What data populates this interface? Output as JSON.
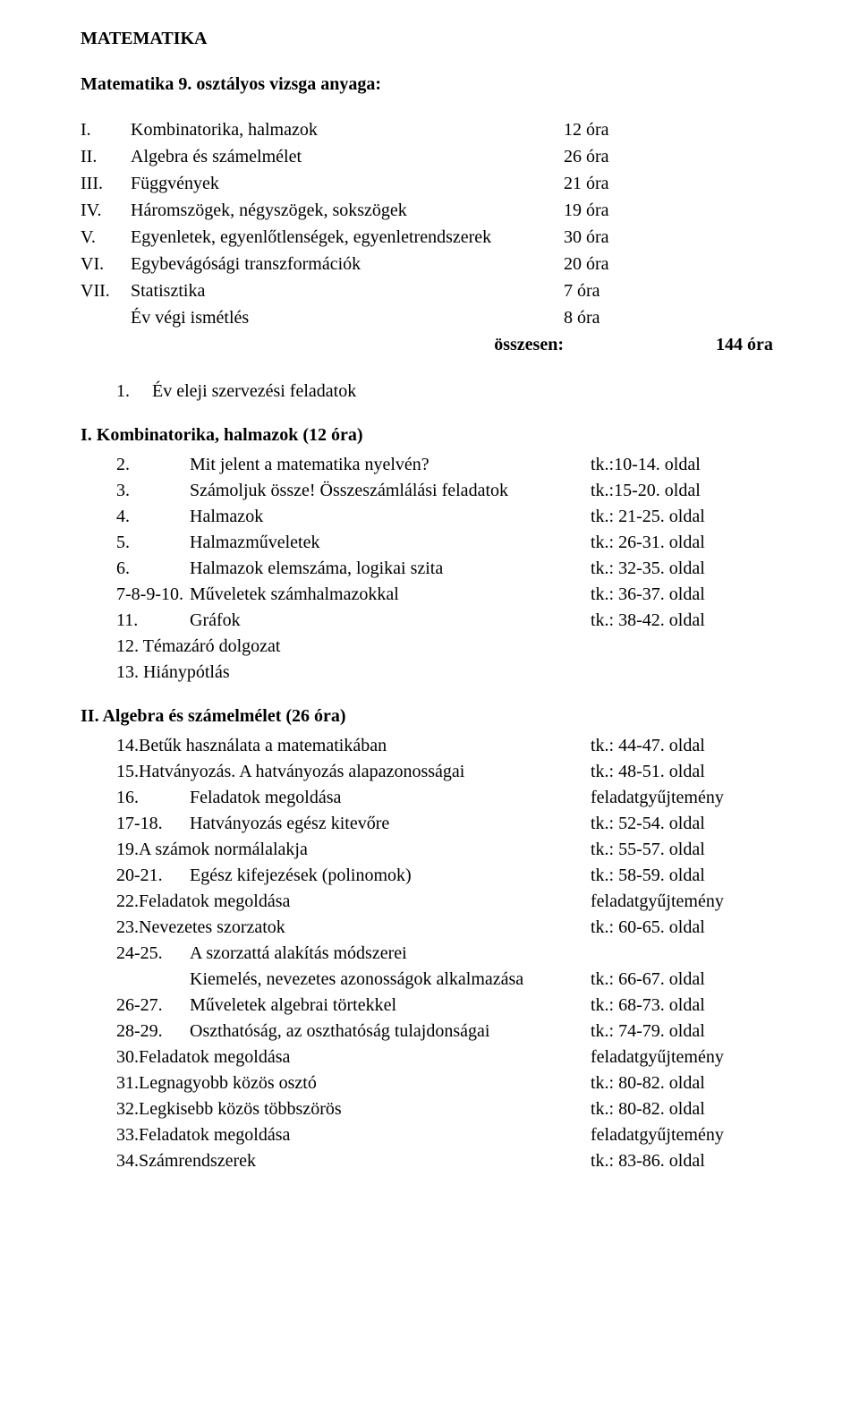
{
  "title": "MATEMATIKA",
  "subtitle": "Matematika 9. osztályos vizsga anyaga:",
  "toc": [
    {
      "num": "I.",
      "label": "Kombinatorika, halmazok",
      "hours": "12 óra"
    },
    {
      "num": "II.",
      "label": "Algebra és számelmélet",
      "hours": "26 óra"
    },
    {
      "num": "III.",
      "label": "Függvények",
      "hours": "21 óra"
    },
    {
      "num": "IV.",
      "label": "Háromszögek, négyszögek, sokszögek",
      "hours": "19 óra"
    },
    {
      "num": "V.",
      "label": "Egyenletek, egyenlőtlenségek, egyenletrendszerek",
      "hours": "30 óra"
    },
    {
      "num": "VI.",
      "label": "Egybevágósági transzformációk",
      "hours": "20 óra"
    },
    {
      "num": "VII.",
      "label": "Statisztika",
      "hours": "7 óra"
    },
    {
      "num": "",
      "label": "Év végi ismétlés",
      "hours": "8 óra"
    }
  ],
  "osszesen_label": "összesen:",
  "osszesen_hours": "144 óra",
  "intro_item": {
    "num": "1.",
    "text": "Év eleji szervezési feladatok"
  },
  "sec1": {
    "heading": "I. Kombinatorika, halmazok (12 óra)",
    "rows": [
      {
        "num": "2.",
        "text": "Mit jelent a matematika nyelvén?",
        "ref": "tk.:10-14. oldal"
      },
      {
        "num": "3.",
        "text": "Számoljuk össze! Összeszámlálási feladatok",
        "ref": "tk.:15-20. oldal"
      },
      {
        "num": "4.",
        "text": "Halmazok",
        "ref": "tk.: 21-25. oldal"
      },
      {
        "num": "5.",
        "text": "Halmazműveletek",
        "ref": "tk.: 26-31. oldal"
      },
      {
        "num": "6.",
        "text": "Halmazok elemszáma, logikai szita",
        "ref": "tk.: 32-35. oldal"
      },
      {
        "num": "7-8-9-10.",
        "text": "Műveletek számhalmazokkal",
        "ref": "tk.: 36-37. oldal"
      },
      {
        "num": "11.",
        "text": "Gráfok",
        "ref": "tk.: 38-42. oldal"
      },
      {
        "num": "",
        "text": "12. Témazáró dolgozat",
        "ref": ""
      },
      {
        "num": "",
        "text": "13. Hiánypótlás",
        "ref": ""
      }
    ]
  },
  "sec2": {
    "heading": "II. Algebra és számelmélet (26 óra)",
    "rows": [
      {
        "num": "",
        "text": "14.Betűk használata a matematikában",
        "ref": "tk.: 44-47. oldal"
      },
      {
        "num": "",
        "text": "15.Hatványozás. A hatványozás alapazonosságai",
        "ref": "tk.: 48-51. oldal"
      },
      {
        "num": "16.",
        "text": "Feladatok megoldása",
        "ref": "feladatgyűjtemény"
      },
      {
        "num": "17-18.",
        "text": "Hatványozás egész kitevőre",
        "ref": "tk.: 52-54. oldal"
      },
      {
        "num": "",
        "text": "19.A számok normálalakja",
        "ref": "tk.: 55-57. oldal"
      },
      {
        "num": "20-21.",
        "text": "Egész kifejezések (polinomok)",
        "ref": "tk.: 58-59. oldal"
      },
      {
        "num": "",
        "text": "22.Feladatok megoldása",
        "ref": "feladatgyűjtemény"
      },
      {
        "num": "",
        "text": "23.Nevezetes szorzatok",
        "ref": "tk.: 60-65. oldal"
      },
      {
        "num": "24-25.",
        "text": "A szorzattá alakítás módszerei",
        "ref": ""
      },
      {
        "num": "",
        "text": "Kiemelés, nevezetes azonosságok alkalmazása",
        "ref": "tk.: 66-67. oldal",
        "indent": true
      },
      {
        "num": "26-27.",
        "text": "Műveletek algebrai törtekkel",
        "ref": "tk.: 68-73. oldal"
      },
      {
        "num": "28-29.",
        "text": "Oszthatóság, az oszthatóság tulajdonságai",
        "ref": "tk.: 74-79. oldal"
      },
      {
        "num": "",
        "text": "30.Feladatok megoldása",
        "ref": "feladatgyűjtemény"
      },
      {
        "num": "",
        "text": "31.Legnagyobb közös osztó",
        "ref": "tk.: 80-82. oldal"
      },
      {
        "num": "",
        "text": "32.Legkisebb közös többszörös",
        "ref": "tk.: 80-82. oldal"
      },
      {
        "num": "",
        "text": "33.Feladatok megoldása",
        "ref": "feladatgyűjtemény"
      },
      {
        "num": "",
        "text": "34.Számrendszerek",
        "ref": "tk.: 83-86. oldal"
      }
    ]
  }
}
